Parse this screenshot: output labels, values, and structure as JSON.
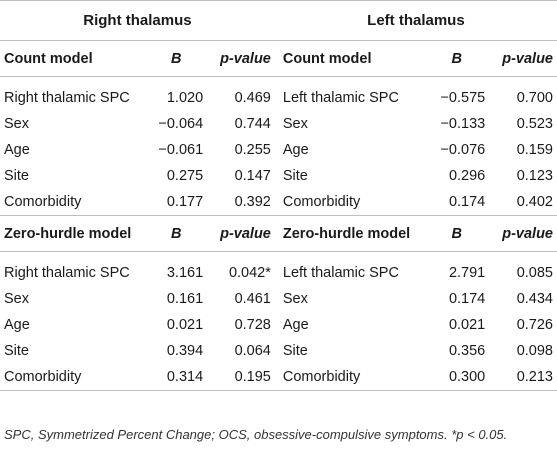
{
  "groups": {
    "right": "Right thalamus",
    "left": "Left thalamus"
  },
  "count_section": {
    "header": {
      "model": "Count model",
      "b": "B",
      "p": "p-value"
    },
    "rows": [
      {
        "rv": "Right thalamic SPC",
        "rb": "1.020",
        "rp": "0.469",
        "lv": "Left thalamic SPC",
        "lb": "−0.575",
        "lp": "0.700"
      },
      {
        "rv": "Sex",
        "rb": "−0.064",
        "rp": "0.744",
        "lv": "Sex",
        "lb": "−0.133",
        "lp": "0.523"
      },
      {
        "rv": "Age",
        "rb": "−0.061",
        "rp": "0.255",
        "lv": "Age",
        "lb": "−0.076",
        "lp": "0.159"
      },
      {
        "rv": "Site",
        "rb": "0.275",
        "rp": "0.147",
        "lv": "Site",
        "lb": "0.296",
        "lp": "0.123"
      },
      {
        "rv": "Comorbidity",
        "rb": "0.177",
        "rp": "0.392",
        "lv": "Comorbidity",
        "lb": "0.174",
        "lp": "0.402"
      }
    ]
  },
  "zero_section": {
    "header": {
      "model": "Zero-hurdle model",
      "b": "B",
      "p": "p-value"
    },
    "rows": [
      {
        "rv": "Right thalamic SPC",
        "rb": "3.161",
        "rp": "0.042*",
        "lv": "Left thalamic SPC",
        "lb": "2.791",
        "lp": "0.085"
      },
      {
        "rv": "Sex",
        "rb": "0.161",
        "rp": "0.461",
        "lv": "Sex",
        "lb": "0.174",
        "lp": "0.434"
      },
      {
        "rv": "Age",
        "rb": "0.021",
        "rp": "0.728",
        "lv": "Age",
        "lb": "0.021",
        "lp": "0.726"
      },
      {
        "rv": "Site",
        "rb": "0.394",
        "rp": "0.064",
        "lv": "Site",
        "lb": "0.356",
        "lp": "0.098"
      },
      {
        "rv": "Comorbidity",
        "rb": "0.314",
        "rp": "0.195",
        "lv": "Comorbidity",
        "lb": "0.300",
        "lp": "0.213"
      }
    ]
  },
  "caption": "SPC, Symmetrized Percent Change; OCS, obsessive-compulsive symptoms. *p < 0.05."
}
